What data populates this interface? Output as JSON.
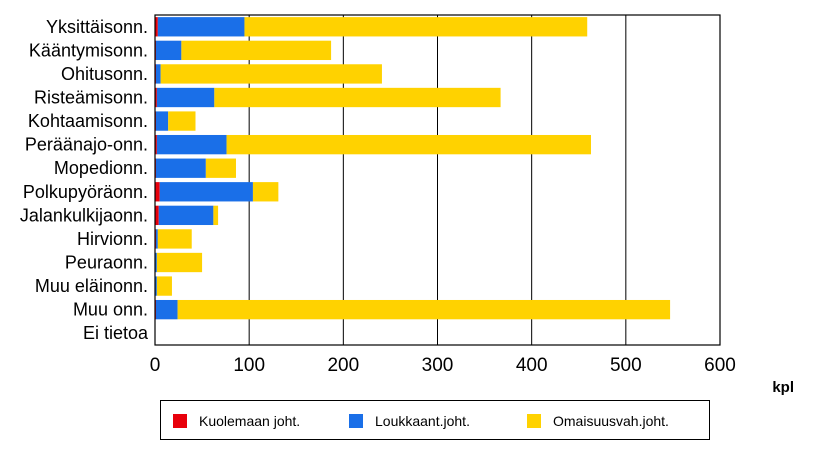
{
  "chart_data": {
    "type": "bar",
    "orientation": "horizontal",
    "stacked": true,
    "categories": [
      "Yksittäisonn.",
      "Kääntymisonn.",
      "Ohitusonn.",
      "Risteämisonn.",
      "Kohtaamisonn.",
      "Peräänajo-onn.",
      "Mopedionn.",
      "Polkupyöräonn.",
      "Jalankulkijaonn.",
      "Hirvionn.",
      "Peuraonn.",
      "Muu eläinonn.",
      "Muu onn.",
      "Ei tietoa"
    ],
    "series": [
      {
        "name": "Kuolemaan joht.",
        "color": "#e8000b",
        "values": [
          3,
          1,
          1,
          2,
          1,
          2,
          1,
          5,
          4,
          1,
          0,
          0,
          1,
          0
        ]
      },
      {
        "name": "Loukkaant.joht.",
        "color": "#1a6fe8",
        "values": [
          92,
          27,
          5,
          61,
          13,
          74,
          53,
          99,
          58,
          2,
          2,
          2,
          23,
          0
        ]
      },
      {
        "name": "Omaisuusvah.joht.",
        "color": "#ffd200",
        "values": [
          364,
          159,
          235,
          304,
          29,
          387,
          32,
          27,
          5,
          36,
          48,
          16,
          523,
          0
        ]
      }
    ],
    "xlim": [
      0,
      600
    ],
    "xticks": [
      "0",
      "100",
      "200",
      "300",
      "400",
      "500",
      "600"
    ],
    "xlabel": "kpl",
    "grid": "vertical",
    "legend": "bottom"
  }
}
